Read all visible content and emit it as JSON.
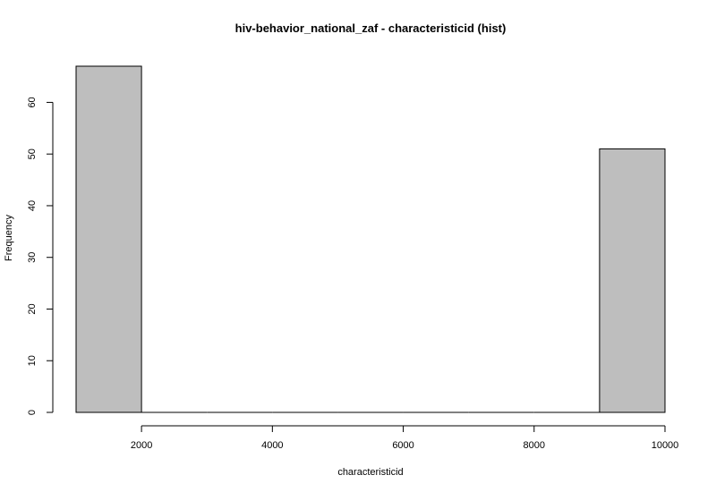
{
  "chart_data": {
    "type": "bar",
    "title": "hiv-behavior_national_zaf - characteristicid (hist)",
    "xlabel": "characteristicid",
    "ylabel": "Frequency",
    "bins": [
      {
        "start": 1000,
        "end": 2000,
        "count": 67
      },
      {
        "start": 2000,
        "end": 3000,
        "count": 0
      },
      {
        "start": 3000,
        "end": 4000,
        "count": 0
      },
      {
        "start": 4000,
        "end": 5000,
        "count": 0
      },
      {
        "start": 5000,
        "end": 6000,
        "count": 0
      },
      {
        "start": 6000,
        "end": 7000,
        "count": 0
      },
      {
        "start": 7000,
        "end": 8000,
        "count": 0
      },
      {
        "start": 8000,
        "end": 9000,
        "count": 0
      },
      {
        "start": 9000,
        "end": 10000,
        "count": 51
      }
    ],
    "xticks": [
      2000,
      4000,
      6000,
      8000,
      10000
    ],
    "yticks": [
      0,
      10,
      20,
      30,
      40,
      50,
      60
    ],
    "xlim": [
      1000,
      10000
    ],
    "ylim": [
      0,
      67
    ],
    "bar_fill": "#bebebe",
    "bar_stroke": "#000000",
    "grid": false
  }
}
